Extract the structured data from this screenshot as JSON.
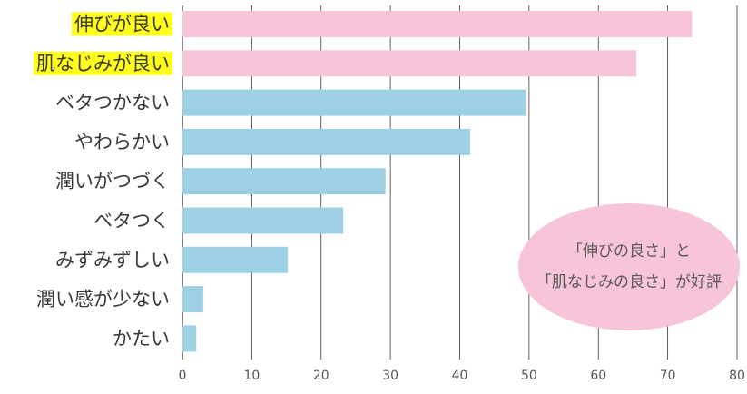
{
  "chart_data": {
    "type": "bar",
    "orientation": "horizontal",
    "categories": [
      "伸びが良い",
      "肌なじみが良い",
      "ベタつかない",
      "やわらかい",
      "潤いがつづく",
      "ベタつく",
      "みずみずしい",
      "潤い感が少ない",
      "かたい"
    ],
    "values": [
      73.5,
      65.5,
      49.5,
      41.5,
      29.3,
      23.2,
      15.2,
      3.0,
      2.0
    ],
    "highlighted": [
      true,
      true,
      false,
      false,
      false,
      false,
      false,
      false,
      false
    ],
    "xlim": [
      0,
      80
    ],
    "xticks": [
      0,
      10,
      20,
      30,
      40,
      50,
      60,
      70,
      80
    ],
    "grid": true,
    "title": "",
    "xlabel": "",
    "ylabel": "",
    "annotation": {
      "line1": "「伸びの良さ」と",
      "line2": "「肌なじみの良さ」が好評"
    },
    "colors": {
      "highlight_bar": "#f7c4d9",
      "normal_bar": "#9dd0e4",
      "label_highlight": "#ffff1a",
      "annotation_fill": "#f7c4d9",
      "grid": "#3a3a3a"
    }
  }
}
